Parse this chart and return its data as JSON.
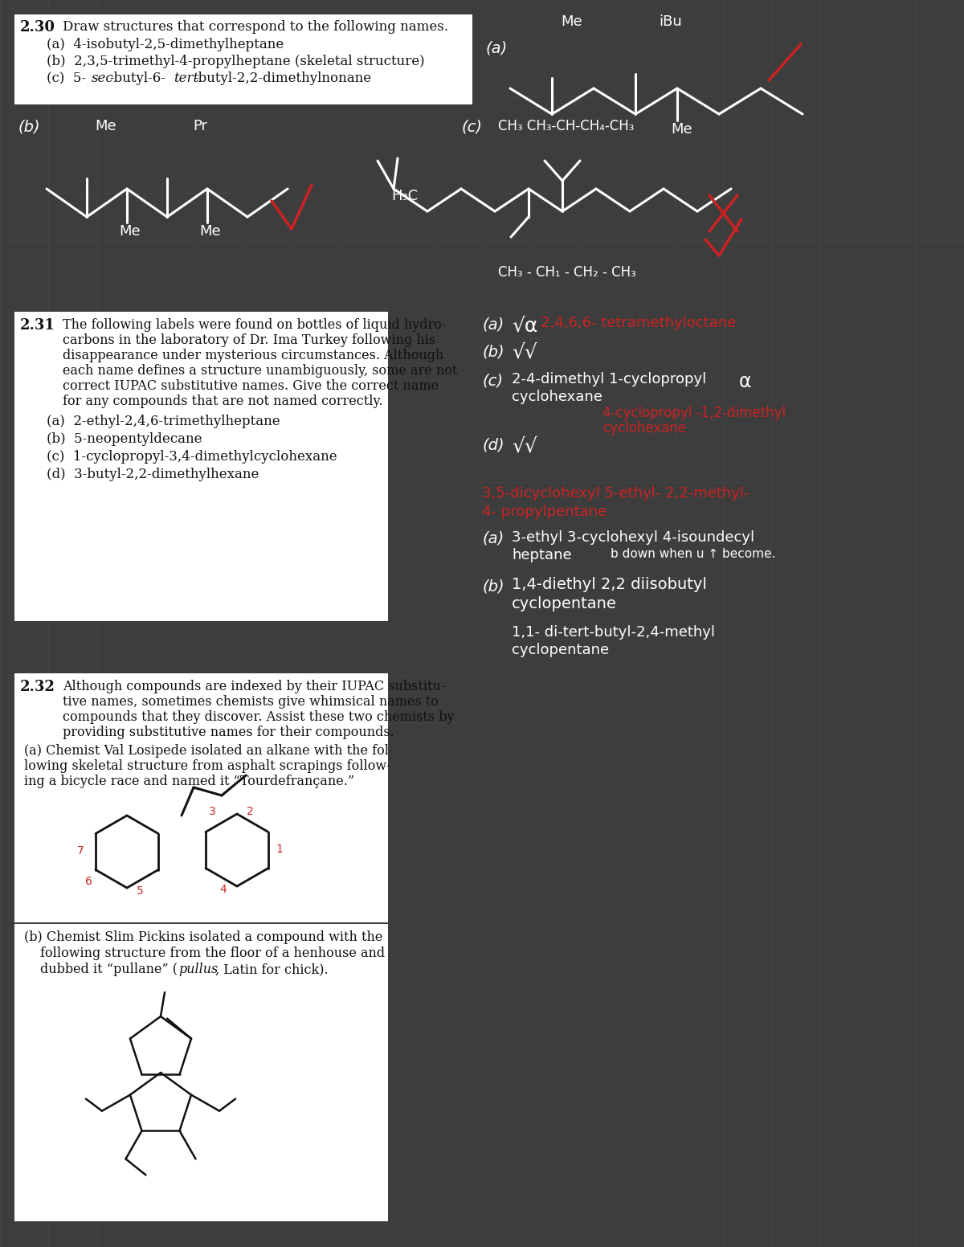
{
  "bg_dark": "#3d3d3d",
  "bg_white": "#ffffff",
  "white": "#ffffff",
  "red": "#cc2222",
  "grid_color": "#555555",
  "text_black": "#111111",
  "s230_title": "2.30",
  "s230_text": "Draw structures that correspond to the following names.",
  "s230_a": "(a)  4-isobutyl-2,5-dimethylheptane",
  "s230_b": "(b)  2,3,5-trimethyl-4-propylheptane (skeletal structure)",
  "s230_c_pre": "(c)  5-",
  "s230_c_sec": "sec",
  "s230_c_mid": "-butyl-6-",
  "s230_c_tert": "tert",
  "s230_c_post": "-butyl-2,2-dimethylnonane",
  "s231_title": "2.31",
  "s231_lines": [
    "The following labels were found on bottles of liquid hydro-",
    "carbons in the laboratory of Dr. Ima Turkey following his",
    "disappearance under mysterious circumstances. Although",
    "each name defines a structure unambiguously, some are not",
    "correct IUPAC substitutive names. Give the correct name",
    "for any compounds that are not named correctly."
  ],
  "s231_a": "(a)  2-ethyl-2,4,6-trimethylheptane",
  "s231_b": "(b)  5-neopentyldecane",
  "s231_c": "(c)  1-cyclopropyl-3,4-dimethylcyclohexane",
  "s231_d": "(d)  3-butyl-2,2-dimethylhexane",
  "s232_title": "2.32",
  "s232_lines": [
    "Although compounds are indexed by their IUPAC substitu-",
    "tive names, sometimes chemists give whimsical names to",
    "compounds that they discover. Assist these two chemists by",
    "providing substitutive names for their compounds."
  ],
  "s232a_lines": [
    "(a) Chemist Val Losipede isolated an alkane with the fol-",
    "lowing skeletal structure from asphalt scrapings follow-",
    "ing a bicycle race and named it “Tourdefrançane.”"
  ],
  "s232b_lines": [
    "(b) Chemist Slim Pickins isolated a compound with the",
    "following structure from the floor of a henhouse and",
    "dubbed it “pullane” (",
    "pullus",
    ", Latin for chick)."
  ],
  "hw231a": "(a)",
  "hw231a_check": "√α",
  "hw231a_text": "2,4,6,6- tetramethyloctane",
  "hw231b": "(b)",
  "hw231b_check": "√√",
  "hw231c": "(c)",
  "hw231c_text1": "2-4-dimethyl 1-cyclopropyl",
  "hw231c_alpha": "α",
  "hw231c_text2": "cyclohexane",
  "hw231c_corr1": "4-cyclopropyl -1,2-dimethyl",
  "hw231c_corr2": "cyclohexane",
  "hw231d": "(d)",
  "hw231d_check": "√√",
  "hw232_line1": "3,5-dicyclohexyl 5-ethyl- 2,2-methyl-",
  "hw232_line2": "4- propylpentane",
  "hw232a": "(a)",
  "hw232a_l1": "3-ethyl 3-cyclohexyl 4-isoundecyl",
  "hw232a_l2": "heptane",
  "hw232a_note": "b down when u ↑ become.",
  "hw232b": "(b)",
  "hw232b_l1": "1,4-diethyl 2,2 diisobutyl",
  "hw232b_l2": "cyclopentane",
  "hw232b_l3": "1,1- di-tert-butyl-2,4-methyl",
  "hw232b_l4": "cyclopentane"
}
